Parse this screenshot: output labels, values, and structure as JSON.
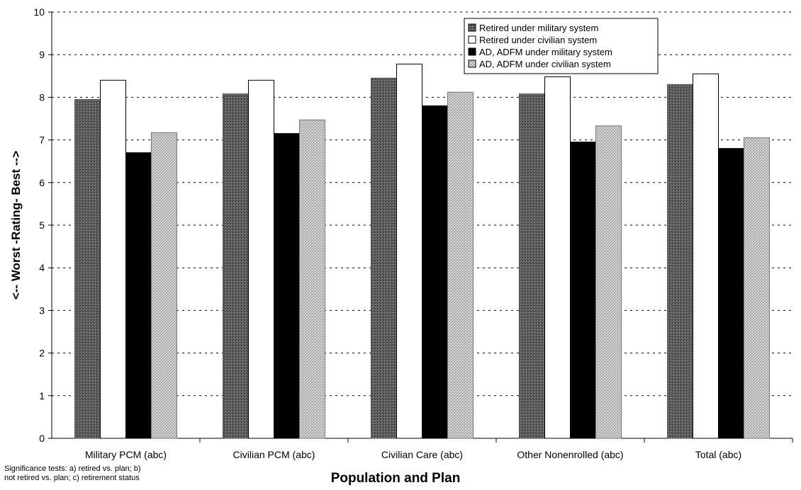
{
  "chart_data": {
    "type": "bar",
    "title": "",
    "xlabel": "Population and Plan",
    "ylabel": "<-- Worst -Rating- Best -->",
    "ylim": [
      0,
      10
    ],
    "yticks": [
      0,
      1,
      2,
      3,
      4,
      5,
      6,
      7,
      8,
      9,
      10
    ],
    "grid": true,
    "legend_position": "top-right",
    "categories": [
      "Military PCM (abc)",
      "Civilian PCM (abc)",
      "Civilian Care (abc)",
      "Other Nonenrolled (abc)",
      "Total (abc)"
    ],
    "series": [
      {
        "name": "Retired under military system",
        "values": [
          7.95,
          8.08,
          8.45,
          8.08,
          8.3
        ],
        "color": "#555555",
        "pattern": "dark-stipple"
      },
      {
        "name": "Retired under civilian system",
        "values": [
          8.4,
          8.4,
          8.78,
          8.48,
          8.55
        ],
        "color": "#ffffff",
        "pattern": "none"
      },
      {
        "name": "AD, ADFM under military system",
        "values": [
          6.7,
          7.15,
          7.8,
          6.95,
          6.8
        ],
        "color": "#000000",
        "pattern": "solid"
      },
      {
        "name": "AD, ADFM under civilian system",
        "values": [
          7.17,
          7.47,
          8.12,
          7.33,
          7.05
        ],
        "color": "#c8c8c8",
        "pattern": "light-hatch"
      }
    ],
    "note": "Significance tests: a) retired vs. plan; b) not retired vs. plan; c) retirement status"
  }
}
